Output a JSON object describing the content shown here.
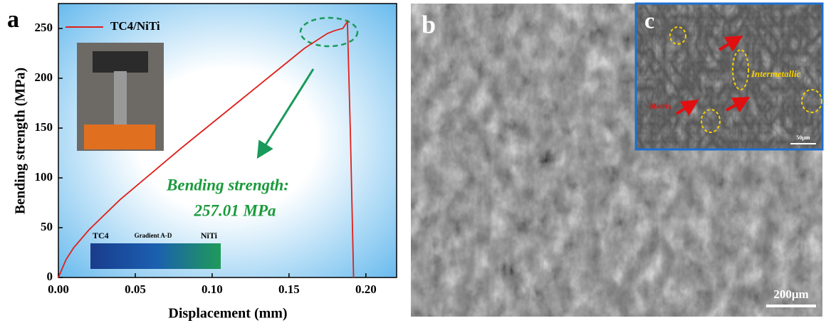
{
  "chart_data": {
    "type": "line",
    "panel_label": "a",
    "xlabel": "Displacement (mm)",
    "ylabel": "Bending strength (MPa)",
    "xlim": [
      0,
      0.22
    ],
    "ylim": [
      0,
      275
    ],
    "xticks": [
      {
        "value": 0,
        "label": "0.00"
      },
      0.05,
      {
        "value": 0.1,
        "label": "0.10"
      },
      0.15,
      {
        "value": 0.2,
        "label": "0.20"
      }
    ],
    "yticks": [
      0,
      50,
      100,
      150,
      200,
      250
    ],
    "x": [
      0,
      0.005,
      0.01,
      0.02,
      0.04,
      0.06,
      0.08,
      0.1,
      0.12,
      0.14,
      0.16,
      0.175,
      0.18,
      0.185,
      0.188,
      0.19,
      0.192
    ],
    "series": [
      {
        "name": "TC4/NiTi",
        "color": "#e0201b",
        "values": [
          0,
          18,
          30,
          48,
          78,
          104,
          130,
          155,
          180,
          205,
          230,
          245,
          248,
          250,
          257,
          140,
          0
        ]
      }
    ],
    "annotations": [
      "Bending strength:",
      "257.01 MPa"
    ],
    "gradient_labels": [
      "TC4",
      "Gradient A-D",
      "NiTi"
    ]
  },
  "images": {
    "b": {
      "label": "b",
      "scale_bar": "200μm"
    },
    "c": {
      "label": "c",
      "labels": [
        "Intermetallic",
        "Matrix"
      ],
      "scale_bar": "50μm"
    }
  }
}
